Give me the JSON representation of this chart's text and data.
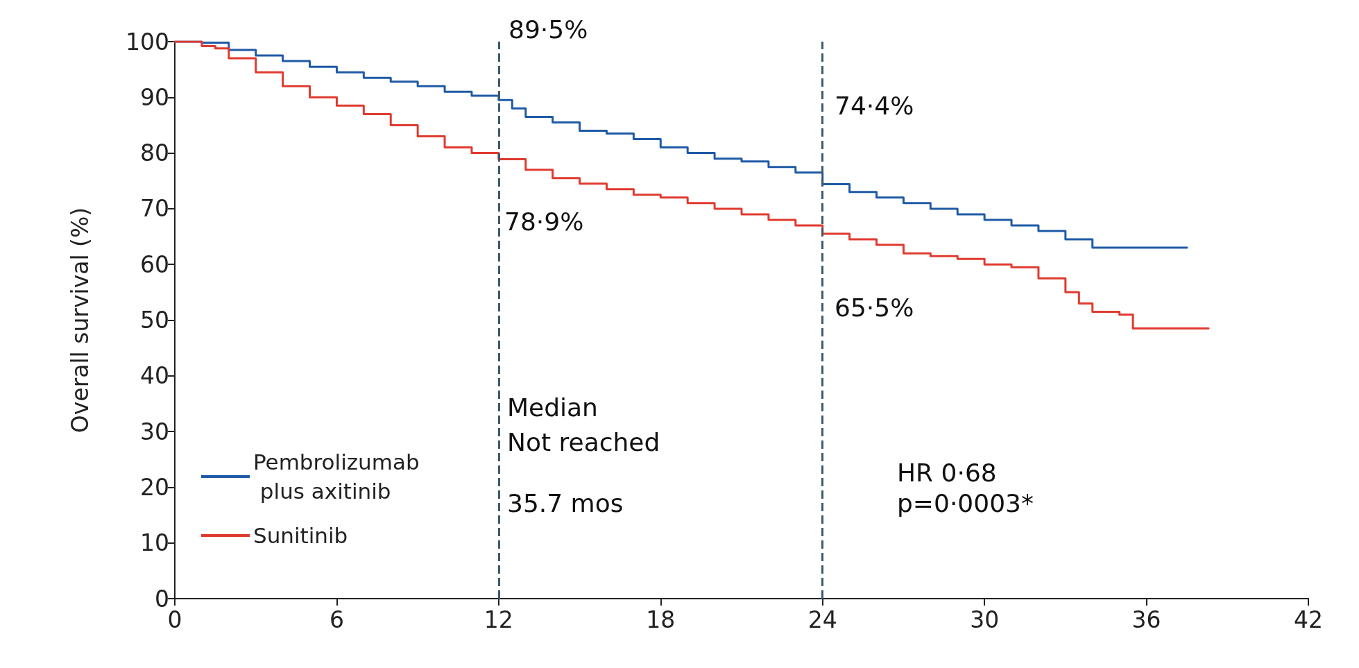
{
  "chart_data": {
    "type": "step",
    "ylabel": "Overall survival (%)",
    "xlim": [
      0,
      42
    ],
    "xticks": [
      0,
      6,
      12,
      18,
      24,
      30,
      36,
      42
    ],
    "ylim": [
      0,
      100
    ],
    "yticks": [
      0,
      10,
      20,
      30,
      40,
      50,
      60,
      70,
      80,
      90,
      100
    ],
    "grid": false,
    "legend": "bottom left",
    "marker": "none",
    "line_style": "solid",
    "series": [
      {
        "name": "Pembrolizumab plus axitinib",
        "color": "#1f5aa6",
        "x": [
          0,
          1,
          2,
          3,
          4,
          5,
          6,
          7,
          8,
          9,
          10,
          11,
          12,
          12.5,
          13,
          14,
          15,
          16,
          17,
          18,
          19,
          20,
          21,
          22,
          23,
          24,
          25,
          26,
          27,
          28,
          29,
          30,
          31,
          32,
          33,
          34,
          37.5
        ],
        "values": [
          100,
          99.8,
          98.5,
          97.5,
          96.5,
          95.5,
          94.5,
          93.5,
          92.8,
          92,
          91,
          90.3,
          89.5,
          88,
          86.5,
          85.5,
          84,
          83.5,
          82.5,
          81,
          80,
          79,
          78.5,
          77.5,
          76.5,
          74.4,
          73,
          72,
          71,
          70,
          69,
          68,
          67,
          66,
          64.5,
          63,
          63
        ]
      },
      {
        "name": "Sunitinib",
        "color": "#e03a2f",
        "x": [
          0,
          1,
          1.5,
          2,
          3,
          4,
          5,
          6,
          7,
          8,
          9,
          10,
          11,
          12,
          13,
          14,
          15,
          16,
          17,
          18,
          19,
          20,
          21,
          22,
          23,
          24,
          25,
          26,
          27,
          28,
          29,
          30,
          31,
          32,
          33,
          33.5,
          34,
          35,
          35.5,
          38.3
        ],
        "values": [
          100,
          99.2,
          98.8,
          97,
          94.5,
          92,
          90,
          88.5,
          87,
          85,
          83,
          81,
          80,
          78.9,
          77,
          75.5,
          74.5,
          73.5,
          72.5,
          72,
          71,
          70,
          69,
          68,
          67,
          65.5,
          64.5,
          63.5,
          62,
          61.5,
          61,
          60,
          59.5,
          57.5,
          55,
          53,
          51.5,
          51,
          48.5,
          48.5
        ]
      }
    ],
    "ref_lines": [
      {
        "axis": "x",
        "value": 12,
        "color": "#3d5a6c",
        "line_style": "dashed"
      },
      {
        "axis": "x",
        "value": 24,
        "color": "#3d5a6c",
        "line_style": "dashed"
      }
    ],
    "annotations": [
      "89·5%",
      "78·9%",
      "74·4%",
      "65·5%",
      "Median",
      "Not reached",
      "35.7 mos",
      "HR 0·68",
      "p=0·0003*"
    ]
  }
}
